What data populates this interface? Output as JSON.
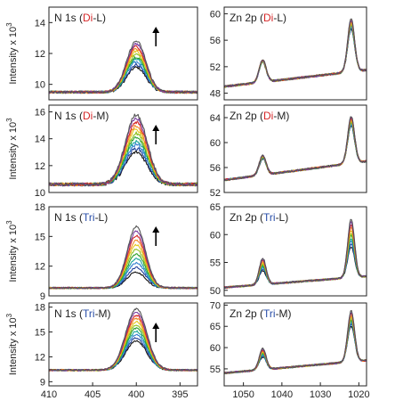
{
  "colors": {
    "axis": "#222222",
    "sample_Di": "#d62728",
    "sample_Tri": "#2a4fa8",
    "series_palette": [
      "#111111",
      "#1f3f99",
      "#2f7fd0",
      "#1aa59a",
      "#2ca02c",
      "#8fbf1f",
      "#e6c619",
      "#f08a24",
      "#d62728",
      "#7b3fa0",
      "#555555"
    ],
    "arrow": "#000000"
  },
  "chart_data": [
    {
      "type": "line",
      "panel": "N 1s Di-L",
      "title_prefix": "N 1s (",
      "sample": "Di",
      "sample_suffix": "-L",
      "title_suffix": ")",
      "ylabel": "Intensity x 10",
      "ylabel_exp": "3",
      "xlim": [
        410,
        393
      ],
      "ylim": [
        9,
        15
      ],
      "yticks": [
        10,
        12,
        14
      ],
      "xticks": [],
      "xtick_labels": [],
      "arrow": "up",
      "baseline": [
        9.5,
        9.5
      ],
      "peaks": [
        {
          "center": 400.0,
          "width": 1.1,
          "heights_min_max": [
            1.6,
            3.3
          ]
        }
      ],
      "series_count": 11,
      "noise": 0.08
    },
    {
      "type": "line",
      "panel": "N 1s Di-M",
      "title_prefix": "N 1s (",
      "sample": "Di",
      "sample_suffix": "-M",
      "title_suffix": ")",
      "ylabel": "Intensity x 10",
      "ylabel_exp": "3",
      "xlim": [
        410,
        393
      ],
      "ylim": [
        10,
        16.5
      ],
      "yticks": [
        10,
        12,
        14,
        16
      ],
      "xticks": [],
      "xtick_labels": [],
      "arrow": "up",
      "baseline": [
        10.6,
        10.6
      ],
      "peaks": [
        {
          "center": 400.0,
          "width": 1.25,
          "heights_min_max": [
            2.4,
            5.2
          ]
        }
      ],
      "series_count": 11,
      "noise": 0.12
    },
    {
      "type": "line",
      "panel": "N 1s Tri-L",
      "title_prefix": "N 1s (",
      "sample": "Tri",
      "sample_suffix": "-L",
      "title_suffix": ")",
      "ylabel": "Intensity x 10",
      "ylabel_exp": "3",
      "xlim": [
        410,
        393
      ],
      "ylim": [
        9,
        18
      ],
      "yticks": [
        9,
        12,
        15,
        18
      ],
      "xticks": [],
      "xtick_labels": [],
      "arrow": "up",
      "baseline": [
        9.8,
        9.8
      ],
      "peaks": [
        {
          "center": 400.0,
          "width": 1.05,
          "heights_min_max": [
            1.6,
            6.2
          ]
        }
      ],
      "series_count": 11,
      "noise": 0.08
    },
    {
      "type": "line",
      "panel": "N 1s Tri-M",
      "title_prefix": "N 1s  (",
      "sample": "Tri",
      "sample_suffix": "-M",
      "title_suffix": ")",
      "ylabel": "Intensity x 10",
      "ylabel_exp": "3",
      "xlim": [
        410,
        393
      ],
      "ylim": [
        8.5,
        18.5
      ],
      "yticks": [
        9,
        12,
        15,
        18
      ],
      "xticks": [
        410,
        405,
        400,
        395
      ],
      "xtick_labels": [
        "410",
        "405",
        "400",
        "395"
      ],
      "arrow": "up",
      "baseline": [
        10.4,
        10.4
      ],
      "peaks": [
        {
          "center": 400.0,
          "width": 1.2,
          "heights_min_max": [
            3.5,
            7.4
          ]
        }
      ],
      "series_count": 11,
      "noise": 0.1
    },
    {
      "type": "line",
      "panel": "Zn 2p Di-L",
      "title_prefix": "Zn 2p (",
      "sample": "Di",
      "sample_suffix": "-L",
      "title_suffix": ")",
      "ylabel": "",
      "ylabel_exp": "",
      "xlim": [
        1055,
        1018
      ],
      "ylim": [
        47,
        61
      ],
      "yticks": [
        48,
        52,
        56,
        60
      ],
      "xticks": [],
      "xtick_labels": [],
      "arrow": "",
      "baseline": [
        49.0,
        51.5
      ],
      "peaks": [
        {
          "center": 1045.0,
          "width": 0.9,
          "heights_min_max": [
            3.0,
            3.4
          ]
        },
        {
          "center": 1022.0,
          "width": 0.9,
          "heights_min_max": [
            6.5,
            8.0
          ]
        }
      ],
      "series_count": 11,
      "noise": 0.15
    },
    {
      "type": "line",
      "panel": "Zn 2p Di-M",
      "title_prefix": "Zn 2p (",
      "sample": "Di",
      "sample_suffix": "-M",
      "title_suffix": ")",
      "ylabel": "",
      "ylabel_exp": "",
      "xlim": [
        1055,
        1018
      ],
      "ylim": [
        52,
        66
      ],
      "yticks": [
        52,
        56,
        60,
        64
      ],
      "xticks": [],
      "xtick_labels": [],
      "arrow": "",
      "baseline": [
        54.0,
        57.0
      ],
      "peaks": [
        {
          "center": 1045.0,
          "width": 0.9,
          "heights_min_max": [
            2.6,
            3.2
          ]
        },
        {
          "center": 1022.0,
          "width": 0.9,
          "heights_min_max": [
            6.0,
            7.5
          ]
        }
      ],
      "series_count": 11,
      "noise": 0.15
    },
    {
      "type": "line",
      "panel": "Zn 2p Tri-L",
      "title_prefix": "Zn 2p (",
      "sample": "Tri",
      "sample_suffix": "-L",
      "title_suffix": ")",
      "ylabel": "",
      "ylabel_exp": "",
      "xlim": [
        1055,
        1018
      ],
      "ylim": [
        49,
        65
      ],
      "yticks": [
        50,
        55,
        60,
        65
      ],
      "xticks": [],
      "xtick_labels": [],
      "arrow": "",
      "baseline": [
        50.5,
        52.5
      ],
      "peaks": [
        {
          "center": 1045.0,
          "width": 0.9,
          "heights_min_max": [
            2.5,
            4.8
          ]
        },
        {
          "center": 1022.0,
          "width": 0.9,
          "heights_min_max": [
            5.5,
            10.5
          ]
        }
      ],
      "series_count": 11,
      "noise": 0.15
    },
    {
      "type": "line",
      "panel": "Zn 2p Tri-M",
      "title_prefix": "Zn 2p (",
      "sample": "Tri",
      "sample_suffix": "-M",
      "title_suffix": ")",
      "ylabel": "",
      "ylabel_exp": "",
      "xlim": [
        1055,
        1018
      ],
      "ylim": [
        51,
        70.5
      ],
      "yticks": [
        55,
        60,
        65,
        70
      ],
      "xticks": [
        1050,
        1040,
        1030,
        1020
      ],
      "xtick_labels": [
        "1050",
        "1040",
        "1030",
        "1020"
      ],
      "arrow": "",
      "baseline": [
        54.0,
        57.0
      ],
      "peaks": [
        {
          "center": 1045.0,
          "width": 0.9,
          "heights_min_max": [
            3.0,
            5.0
          ]
        },
        {
          "center": 1022.0,
          "width": 0.9,
          "heights_min_max": [
            8.5,
            12.0
          ]
        }
      ],
      "series_count": 11,
      "noise": 0.2
    }
  ]
}
